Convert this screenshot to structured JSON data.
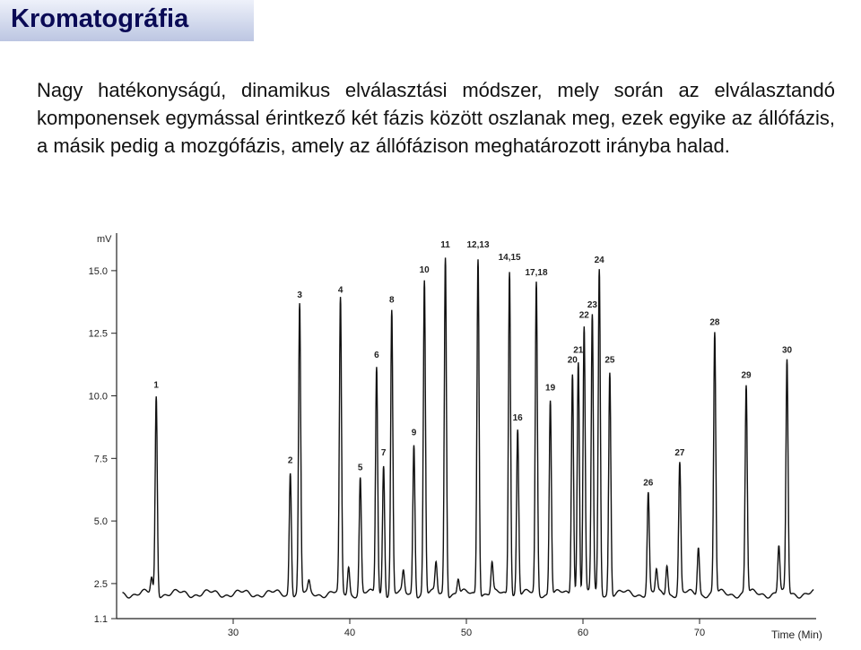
{
  "slide": {
    "title": "Kromatográfia",
    "body": "Nagy hatékonyságú, dinamikus elválasztási módszer, mely során az elválasztandó komponensek egymással érintkező két fázis között oszlanak meg, ezek egyike az állófázis, a másik pedig a mozgófázis, amely az állófázison meghatározott irányba halad."
  },
  "chart_data": {
    "type": "line",
    "title": "",
    "xlabel": "Time (Min)",
    "ylabel": "mV",
    "xlim": [
      20,
      80
    ],
    "ylim": [
      1.1,
      16.5
    ],
    "x_ticks": [
      "30",
      "40",
      "50",
      "60",
      "70"
    ],
    "y_ticks": [
      "1.1",
      "2.5",
      "5.0",
      "7.5",
      "10.0",
      "12.5",
      "15.0"
    ],
    "baseline_mV": 2.1,
    "peaks": [
      {
        "label": "1",
        "time": 23.4,
        "height": 10.0
      },
      {
        "label": "2",
        "time": 34.9,
        "height": 7.0
      },
      {
        "label": "3",
        "time": 35.7,
        "height": 13.6
      },
      {
        "label": "4",
        "time": 39.2,
        "height": 13.8
      },
      {
        "label": "5",
        "time": 40.9,
        "height": 6.7
      },
      {
        "label": "6",
        "time": 42.3,
        "height": 11.2
      },
      {
        "label": "7",
        "time": 42.9,
        "height": 7.3
      },
      {
        "label": "8",
        "time": 43.6,
        "height": 13.4
      },
      {
        "label": "9",
        "time": 45.5,
        "height": 8.1
      },
      {
        "label": "10",
        "time": 46.4,
        "height": 14.6
      },
      {
        "label": "11",
        "time": 48.2,
        "height": 15.6
      },
      {
        "label": "12,13",
        "time": 51.0,
        "height": 15.6
      },
      {
        "label": "14,15",
        "time": 53.7,
        "height": 15.1
      },
      {
        "label": "16",
        "time": 54.4,
        "height": 8.7
      },
      {
        "label": "17,18",
        "time": 56.0,
        "height": 14.5
      },
      {
        "label": "19",
        "time": 57.2,
        "height": 9.9
      },
      {
        "label": "20",
        "time": 59.1,
        "height": 11.0
      },
      {
        "label": "21",
        "time": 59.6,
        "height": 11.4
      },
      {
        "label": "22",
        "time": 60.1,
        "height": 12.8
      },
      {
        "label": "23",
        "time": 60.8,
        "height": 13.2
      },
      {
        "label": "24",
        "time": 61.4,
        "height": 15.0
      },
      {
        "label": "25",
        "time": 62.3,
        "height": 11.0
      },
      {
        "label": "26",
        "time": 65.6,
        "height": 6.1
      },
      {
        "label": "27",
        "time": 68.3,
        "height": 7.3
      },
      {
        "label": "28",
        "time": 71.3,
        "height": 12.5
      },
      {
        "label": "29",
        "time": 74.0,
        "height": 10.4
      },
      {
        "label": "30",
        "time": 77.5,
        "height": 11.4
      }
    ],
    "minor_peaks": [
      {
        "time": 23.0,
        "height": 2.7
      },
      {
        "time": 36.5,
        "height": 2.5
      },
      {
        "time": 39.9,
        "height": 3.2
      },
      {
        "time": 44.6,
        "height": 2.9
      },
      {
        "time": 47.4,
        "height": 3.3
      },
      {
        "time": 49.3,
        "height": 2.7
      },
      {
        "time": 52.2,
        "height": 3.3
      },
      {
        "time": 66.3,
        "height": 3.0
      },
      {
        "time": 67.2,
        "height": 3.3
      },
      {
        "time": 69.9,
        "height": 4.0
      },
      {
        "time": 76.8,
        "height": 4.0
      }
    ],
    "grid": false,
    "legend": "none"
  }
}
